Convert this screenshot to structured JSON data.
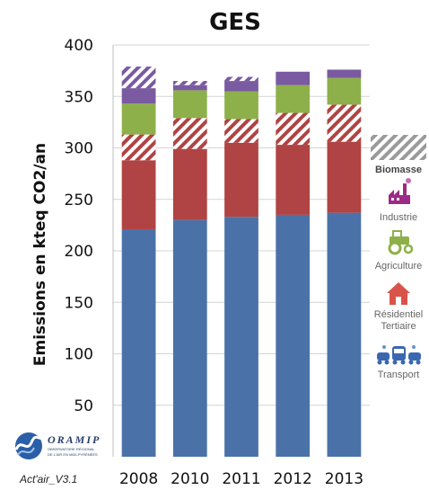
{
  "chart_data": {
    "type": "bar",
    "stacked": true,
    "title": "GES",
    "ylabel": "Emissions en kteq CO2/an",
    "xlabel": "",
    "ylim": [
      0,
      400
    ],
    "yticks": [
      50,
      100,
      150,
      200,
      250,
      300,
      350,
      400
    ],
    "grid": true,
    "legend_position": "right",
    "categories": [
      "2008",
      "2010",
      "2011",
      "2012",
      "2013"
    ],
    "series": [
      {
        "name": "Transport",
        "color": "#4a72a8",
        "pattern": "solid",
        "values": [
          221,
          230,
          233,
          235,
          237
        ]
      },
      {
        "name": "Résidentiel Tertiaire",
        "color": "#b04343",
        "pattern": "solid",
        "values": [
          67,
          69,
          72,
          68,
          69
        ]
      },
      {
        "name": "Résidentiel Tertiaire",
        "color": "#b04343",
        "pattern": "hatched",
        "values": [
          25,
          30,
          23,
          31,
          36
        ]
      },
      {
        "name": "Agriculture",
        "color": "#8db04a",
        "pattern": "solid",
        "values": [
          30,
          27,
          27,
          27,
          26
        ]
      },
      {
        "name": "Industrie",
        "color": "#7a5aa0",
        "pattern": "solid",
        "values": [
          15,
          5,
          10,
          13,
          8
        ]
      },
      {
        "name": "Biomasse",
        "color": "#7a5aa0",
        "pattern": "hatched",
        "values": [
          21,
          4,
          4,
          0,
          0
        ]
      }
    ]
  },
  "legend": {
    "items": [
      {
        "key": "biomasse",
        "label": "Biomasse",
        "strong": true,
        "icon": "hatch-swatch-icon",
        "color": "#9a9a9a"
      },
      {
        "key": "industrie",
        "label": "Industrie",
        "strong": false,
        "icon": "factory-icon",
        "color": "#9c2a86"
      },
      {
        "key": "agriculture",
        "label": "Agriculture",
        "strong": false,
        "icon": "tractor-icon",
        "color": "#8db04a"
      },
      {
        "key": "residentiel",
        "label": "Résidentiel\nTertiaire",
        "strong": false,
        "icon": "house-icon",
        "color": "#d9534a"
      },
      {
        "key": "transport",
        "label": "Transport",
        "strong": false,
        "icon": "vehicles-icon",
        "color": "#3a68b0"
      }
    ]
  },
  "logo": {
    "name": "ORAMIP",
    "subtitle": "OBSERVATOIRE RÉGIONAL DE L'AIR EN MIDI-PYRÉNÉES",
    "color": "#2a3c6c"
  },
  "footer": {
    "version": "Act'air_V3.1"
  }
}
